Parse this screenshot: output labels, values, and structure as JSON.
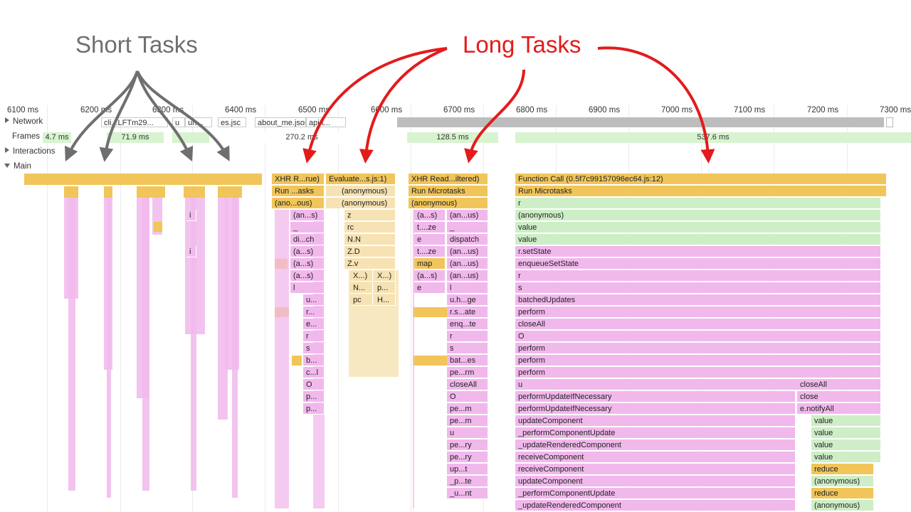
{
  "annotations": {
    "short_tasks": "Short Tasks",
    "long_tasks": "Long Tasks"
  },
  "ruler": [
    "6100 ms",
    "6200 ms",
    "6300 ms",
    "6400 ms",
    "6500 ms",
    "6600 ms",
    "6700 ms",
    "6800 ms",
    "6900 ms",
    "7000 ms",
    "7100 ms",
    "7200 ms",
    "7300 ms"
  ],
  "tracks": {
    "network": "Network",
    "frames": "Frames",
    "interactions": "Interactions",
    "main": "Main"
  },
  "network_requests": [
    "cli...LFTm29...",
    "u",
    "un...",
    "es.jsc",
    "about_me.json",
    "api.t..."
  ],
  "frames": [
    "4.7 ms",
    "71.9 ms",
    "270.2 ms",
    "128.5 ms",
    "537.6 ms"
  ],
  "flame": {
    "task1": [
      "XHR R...rue)",
      "Run ...asks",
      "(ano...ous)"
    ],
    "task1_col1": [
      "(an...s)",
      "_",
      "di...ch",
      "(a...s)",
      "(a...s)",
      "(a...s)",
      "l"
    ],
    "task1_col2": [
      "u...",
      "r...",
      "e...",
      "r",
      "s",
      "b...",
      "c...l",
      "O",
      "p...",
      "p..."
    ],
    "task1_marks": [
      "i",
      "i"
    ],
    "task2": [
      "Evaluate...s.js:1)",
      "(anonymous)",
      "(anonymous)"
    ],
    "task2_col": [
      "z",
      "rc",
      "N.N",
      "Z.D",
      "Z.v"
    ],
    "task2_pairs": [
      [
        "X...)",
        "X...)"
      ],
      [
        "N...",
        "p..."
      ],
      [
        "pc",
        "H..."
      ]
    ],
    "task3": [
      "XHR Read...iltered)",
      "Run Microtasks",
      "(anonymous)"
    ],
    "task3_left": [
      "(a...s)",
      "t....ze",
      "e",
      "t....ze",
      "map",
      "(a...s)",
      "e"
    ],
    "task3_right": [
      "(an...us)",
      "_",
      "dispatch",
      "(an...us)",
      "(an...us)",
      "(an...us)",
      "l",
      "u.h...ge",
      "r.s...ate",
      "enq...te",
      "r",
      "s",
      "bat...es",
      "pe...rm",
      "closeAll",
      "O",
      "pe...m",
      "pe...m",
      "u",
      "pe...ry",
      "pe...ry",
      "up...t",
      "_p...te",
      "_u...nt"
    ],
    "task4": [
      "Function Call (0.5f7c99157096ec64.js:12)",
      "Run Microtasks"
    ],
    "task4_stack": [
      "r",
      "(anonymous)",
      "value",
      "value",
      "r.setState",
      "enqueueSetState",
      "r",
      "s",
      "batchedUpdates",
      "perform",
      "closeAll",
      "O",
      "perform",
      "perform",
      "perform",
      "u",
      "performUpdateIfNecessary",
      "performUpdateIfNecessary",
      "updateComponent",
      "_performComponentUpdate",
      "_updateRenderedComponent",
      "receiveComponent",
      "receiveComponent",
      "updateComponent",
      "_performComponentUpdate",
      "_updateRenderedComponent"
    ],
    "task4_side": [
      "closeAll",
      "close",
      "e.notifyAll",
      "value",
      "value",
      "value",
      "value",
      "reduce",
      "(anonymous)",
      "reduce",
      "(anonymous)"
    ]
  },
  "colors": {
    "short_annotation": "#6f6f6f",
    "long_annotation": "#e31b1b",
    "scripting": "#f1c55a",
    "function": "#f1b8ec",
    "microtask": "#cdeec6"
  }
}
